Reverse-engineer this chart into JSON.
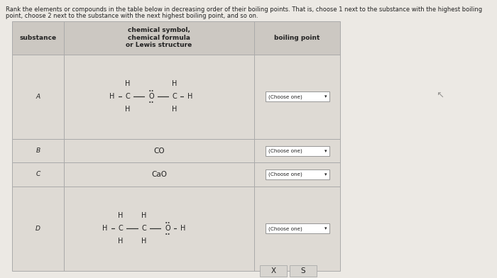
{
  "title_line1": "Rank the elements or compounds in the table below in decreasing order of their boiling points. That is, choose 1 next to the substance with the highest boiling",
  "title_line2": "point, choose 2 next to the substance with the next highest boiling point, and so on.",
  "header_col1": "substance",
  "header_col2": "chemical symbol,\nchemical formula\nor Lewis structure",
  "header_col3": "boiling point",
  "bg_color": "#ece9e4",
  "cell_color": "#dedad4",
  "header_color": "#ccc8c2",
  "border_color": "#aaaaaa",
  "text_color": "#222222",
  "button_bg": "#ffffff",
  "button_border": "#888888",
  "dropdown_label": "(Choose one)",
  "footer_x": "X",
  "footer_s": "S",
  "fig_width": 7.0,
  "fig_height": 3.92,
  "dpi": 100
}
